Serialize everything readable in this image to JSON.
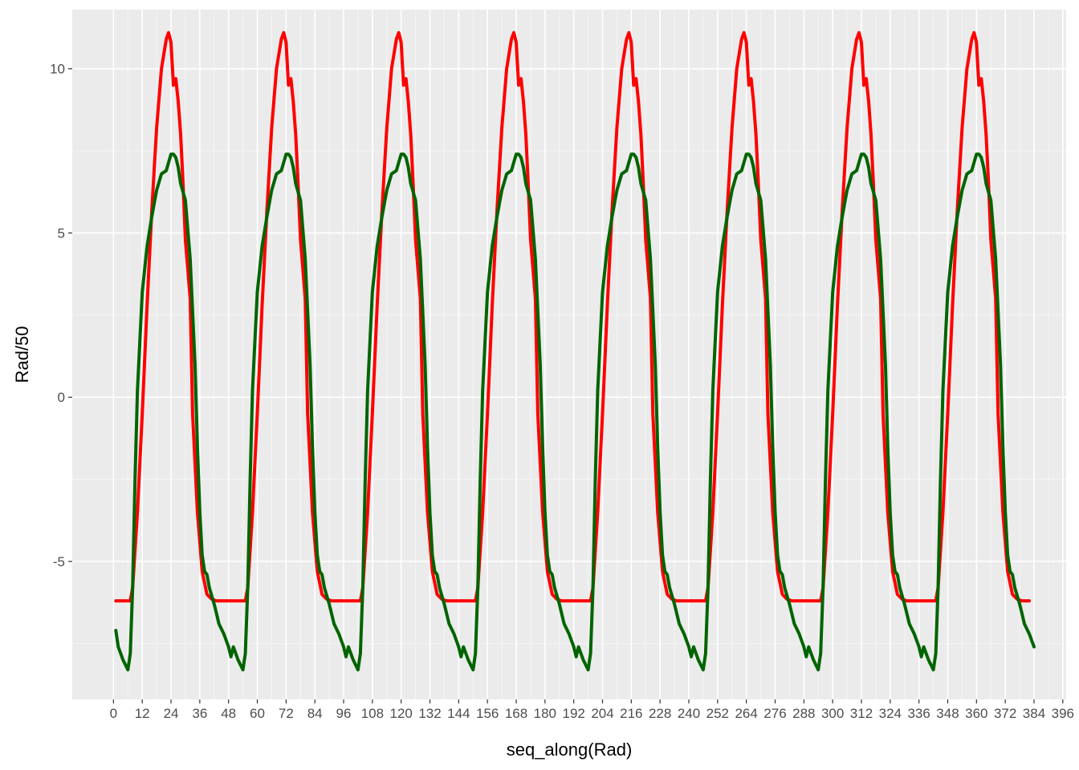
{
  "chart_data": {
    "type": "line",
    "title": "",
    "xlabel": "seq_along(Rad)",
    "ylabel": "Rad/50",
    "xlim": [
      -17.2,
      397.4
    ],
    "ylim": [
      -9.2,
      11.8
    ],
    "grid": true,
    "legend": "none",
    "x_ticks": [
      0,
      12,
      24,
      36,
      48,
      60,
      72,
      84,
      96,
      108,
      120,
      132,
      144,
      156,
      168,
      180,
      192,
      204,
      216,
      228,
      240,
      252,
      264,
      276,
      288,
      300,
      312,
      324,
      336,
      348,
      360,
      372,
      384,
      396
    ],
    "x_tick_labels": [
      "0",
      "12",
      "24",
      "36",
      "48",
      "60",
      "72",
      "84",
      "96",
      "108",
      "120",
      "132",
      "144",
      "156",
      "168",
      "180",
      "192",
      "204",
      "216",
      "228",
      "240",
      "252",
      "264",
      "276",
      "288",
      "300",
      "312",
      "324",
      "336",
      "348",
      "360",
      "372",
      "384",
      "396"
    ],
    "y_ticks": [
      -5,
      0,
      5,
      10
    ],
    "y_tick_labels": [
      "-5",
      "0",
      "5",
      "10"
    ],
    "period": 48,
    "x_range": [
      1,
      384
    ],
    "series": [
      {
        "color": "#ff0000",
        "cycle_profile": {
          "x": [
            1,
            7,
            8,
            10,
            12,
            14,
            16,
            18,
            20,
            22,
            23,
            24,
            25,
            26,
            27,
            28,
            29,
            30,
            32,
            33,
            35,
            37,
            39,
            41,
            43,
            46,
            49
          ],
          "y": [
            -6.2,
            -6.2,
            -5.8,
            -3.5,
            -0.5,
            2.8,
            5.7,
            8.2,
            10.0,
            10.9,
            11.1,
            10.8,
            9.5,
            9.7,
            9.0,
            8.0,
            6.5,
            4.8,
            3.0,
            -0.5,
            -3.5,
            -5.3,
            -6.0,
            -6.15,
            -6.2,
            -6.2,
            -6.2
          ]
        }
      },
      {
        "color": "#006400",
        "cycle_profile": {
          "x": [
            1,
            2,
            4,
            6,
            7,
            8,
            9,
            10,
            12,
            14,
            16,
            18,
            20,
            22,
            24,
            25,
            26,
            27,
            28,
            30,
            32,
            34,
            35,
            36,
            37,
            38,
            39,
            40,
            42,
            43,
            44,
            46,
            48,
            49
          ],
          "y": [
            -7.1,
            -7.6,
            -8.0,
            -8.3,
            -7.8,
            -5.8,
            -2.5,
            0.2,
            3.2,
            4.6,
            5.5,
            6.3,
            6.8,
            6.9,
            7.4,
            7.4,
            7.3,
            7.0,
            6.5,
            6.0,
            4.2,
            1.0,
            -1.5,
            -3.5,
            -4.8,
            -5.3,
            -5.4,
            -5.8,
            -6.3,
            -6.6,
            -6.9,
            -7.2,
            -7.6,
            -7.9
          ]
        }
      }
    ]
  }
}
